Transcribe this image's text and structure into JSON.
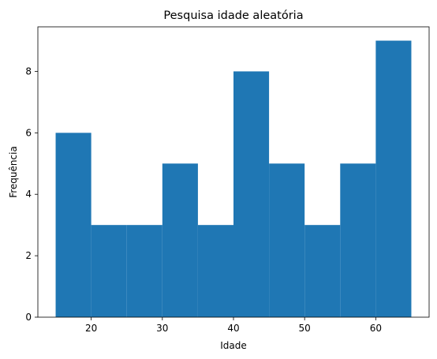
{
  "chart_data": {
    "type": "histogram",
    "title": "Pesquisa idade aleatória",
    "xlabel": "Idade",
    "ylabel": "Frequência",
    "bin_edges": [
      15,
      20,
      25,
      30,
      35,
      40,
      45,
      50,
      55,
      60,
      65
    ],
    "counts": [
      6,
      3,
      3,
      5,
      3,
      8,
      5,
      3,
      5,
      9
    ],
    "xlim": [
      12.5,
      67.5
    ],
    "ylim": [
      0,
      9.45
    ],
    "xticks": [
      20,
      30,
      40,
      50,
      60
    ],
    "yticks": [
      0,
      2,
      4,
      6,
      8
    ],
    "bar_color": "#1f77b4",
    "grid": false,
    "legend": "none"
  }
}
